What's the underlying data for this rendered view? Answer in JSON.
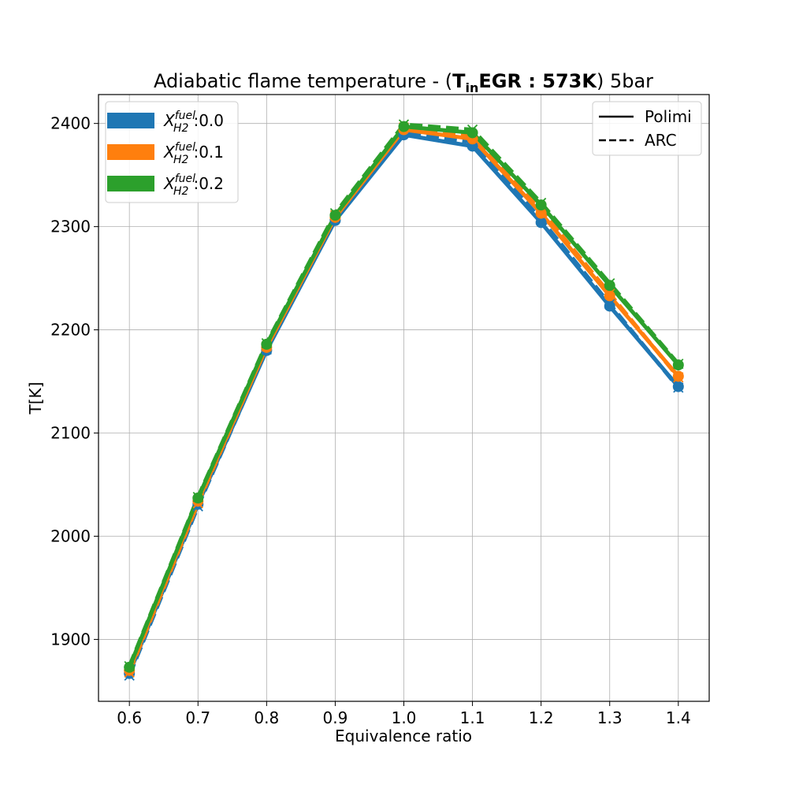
{
  "chart_data": {
    "type": "line",
    "title": {
      "prefix": "Adiabatic flame temperature - (",
      "bold_T": "T",
      "bold_sub": "in",
      "bold_rest": "EGR : 573K",
      "suffix": ") 5bar"
    },
    "xlabel": "Equivalence ratio",
    "ylabel": "T[K]",
    "xlim": [
      0.555,
      1.445
    ],
    "ylim": [
      1840,
      2428
    ],
    "x": [
      0.6,
      0.7,
      0.8,
      0.9,
      1.0,
      1.1,
      1.2,
      1.3,
      1.4
    ],
    "x_tick_labels": [
      "0.6",
      "0.7",
      "0.8",
      "0.9",
      "1.0",
      "1.1",
      "1.2",
      "1.3",
      "1.4"
    ],
    "y_ticks": [
      1900,
      2000,
      2100,
      2200,
      2300,
      2400
    ],
    "grid": true,
    "legend_fuel": {
      "placement": "top-left",
      "entries": [
        {
          "base": "X",
          "sup": "fuel",
          "sub": "H2",
          "label": ":0.0",
          "color": "#1f77b4"
        },
        {
          "base": "X",
          "sup": "fuel",
          "sub": "H2",
          "label": ":0.1",
          "color": "#ff7f0e"
        },
        {
          "base": "X",
          "sup": "fuel",
          "sub": "H2",
          "label": ":0.2",
          "color": "#2ca02c"
        }
      ]
    },
    "legend_model": {
      "placement": "top-right",
      "entries": [
        {
          "label": "Polimi",
          "style": "solid"
        },
        {
          "label": "ARC",
          "style": "dashed"
        }
      ]
    },
    "series": [
      {
        "fuel": "0.0",
        "model": "Polimi",
        "color": "#1f77b4",
        "style": "solid",
        "values": [
          1867,
          2031,
          2180,
          2306,
          2389,
          2378,
          2304,
          2223,
          2145
        ]
      },
      {
        "fuel": "0.0",
        "model": "ARC",
        "color": "#1f77b4",
        "style": "dashed",
        "values": [
          1865,
          2029,
          2181,
          2309,
          2391,
          2382,
          2307,
          2225,
          2144
        ]
      },
      {
        "fuel": "0.1",
        "model": "Polimi",
        "color": "#ff7f0e",
        "style": "solid",
        "values": [
          1870,
          2034,
          2183,
          2309,
          2394,
          2385,
          2313,
          2233,
          2155
        ]
      },
      {
        "fuel": "0.1",
        "model": "ARC",
        "color": "#ff7f0e",
        "style": "dashed",
        "values": [
          1868,
          2032,
          2184,
          2311,
          2396,
          2388,
          2316,
          2235,
          2154
        ]
      },
      {
        "fuel": "0.2",
        "model": "Polimi",
        "color": "#2ca02c",
        "style": "solid",
        "values": [
          1873,
          2037,
          2186,
          2311,
          2397,
          2391,
          2321,
          2243,
          2166
        ]
      },
      {
        "fuel": "0.2",
        "model": "ARC",
        "color": "#2ca02c",
        "style": "dashed",
        "values": [
          1874,
          2038,
          2187,
          2313,
          2399,
          2394,
          2323,
          2245,
          2167
        ]
      }
    ]
  }
}
